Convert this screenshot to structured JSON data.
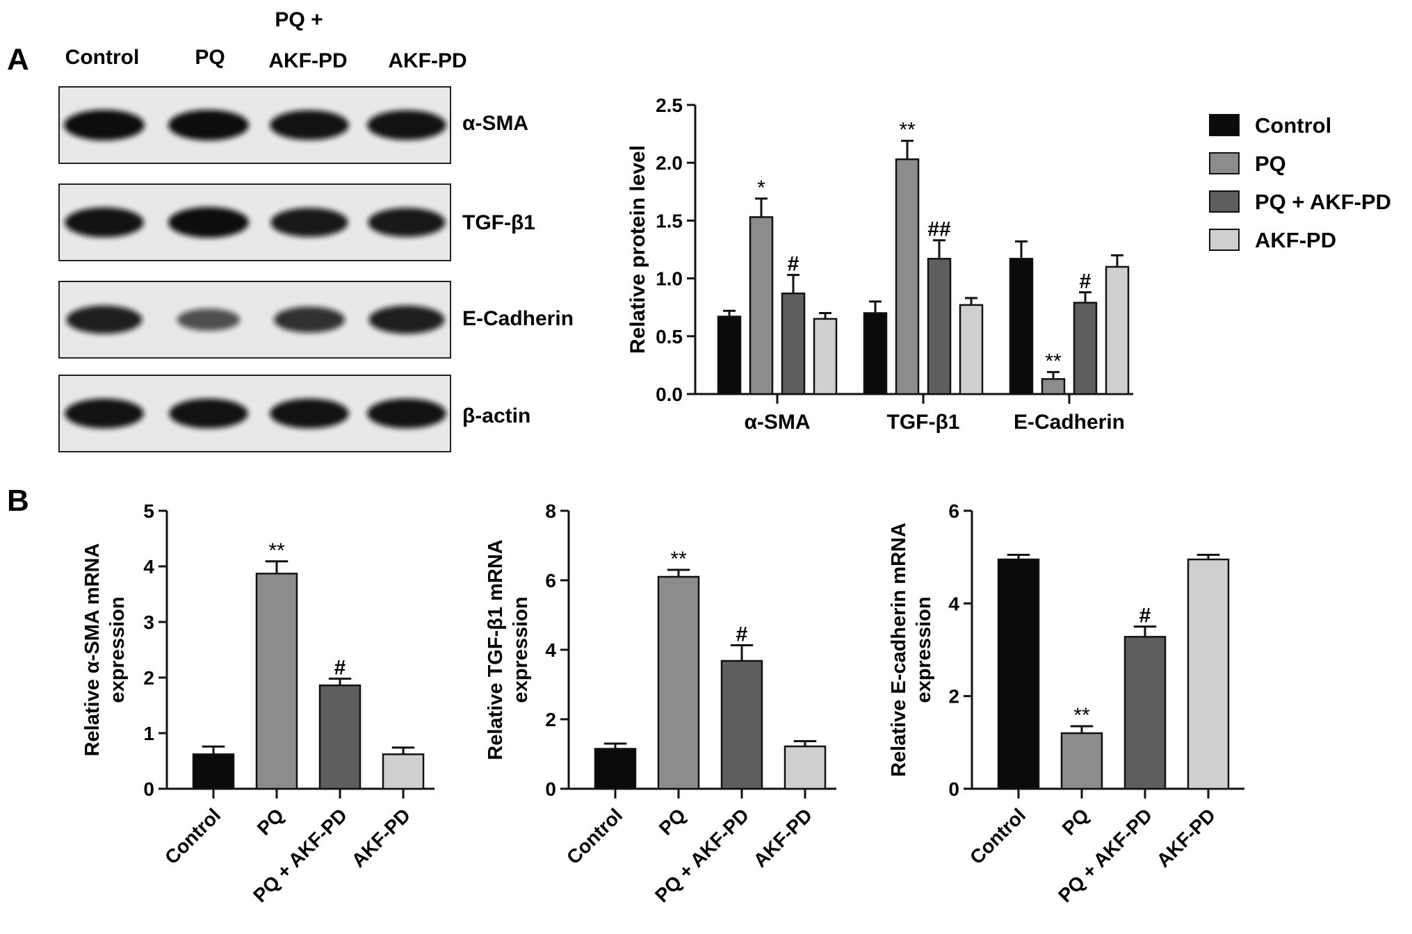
{
  "colors": {
    "control": "#0b0b0b",
    "pq": "#8c8c8c",
    "pq_akf": "#5e5e5e",
    "akf": "#cfcfcf",
    "axis": "#111111",
    "blot_bg": "#e8e8e8",
    "band": "#0e0e0e"
  },
  "panel_a": {
    "letter": "A",
    "lanes": [
      "Control",
      "PQ",
      "PQ +",
      "AKF-PD",
      "AKF-PD"
    ],
    "blot_labels": [
      "α-SMA",
      "TGF-β1",
      "E-Cadherin",
      "β-actin"
    ],
    "band_intensity": [
      [
        1.0,
        1.0,
        0.95,
        0.95
      ],
      [
        0.95,
        1.0,
        0.9,
        0.9
      ],
      [
        0.85,
        0.45,
        0.7,
        0.85
      ],
      [
        0.95,
        0.95,
        0.95,
        0.95
      ]
    ]
  },
  "panel_b": {
    "letter": "B"
  },
  "legend": {
    "entries": [
      {
        "name": "Control",
        "color_key": "control"
      },
      {
        "name": "PQ",
        "color_key": "pq"
      },
      {
        "name": "PQ + AKF-PD",
        "color_key": "pq_akf"
      },
      {
        "name": "AKF-PD",
        "color_key": "akf"
      }
    ]
  },
  "chart_data": [
    {
      "type": "bar",
      "id": "protein",
      "ylabel": "Relative protein level",
      "ylim": [
        0,
        2.5
      ],
      "yticks": [
        "0.0",
        "0.5",
        "1.0",
        "1.5",
        "2.0",
        "2.5"
      ],
      "categories": [
        "α-SMA",
        "TGF-β1",
        "E-Cadherin"
      ],
      "series": [
        {
          "name": "Control",
          "color_key": "control",
          "values": [
            0.67,
            0.7,
            1.17
          ],
          "errors": [
            0.05,
            0.1,
            0.15
          ],
          "annotations": [
            "",
            "",
            ""
          ]
        },
        {
          "name": "PQ",
          "color_key": "pq",
          "values": [
            1.53,
            2.03,
            0.13
          ],
          "errors": [
            0.16,
            0.16,
            0.06
          ],
          "annotations": [
            "*",
            "**",
            "**"
          ]
        },
        {
          "name": "PQ + AKF-PD",
          "color_key": "pq_akf",
          "values": [
            0.87,
            1.17,
            0.79
          ],
          "errors": [
            0.16,
            0.16,
            0.09
          ],
          "annotations": [
            "#",
            "##",
            "#"
          ]
        },
        {
          "name": "AKF-PD",
          "color_key": "akf",
          "values": [
            0.65,
            0.77,
            1.1
          ],
          "errors": [
            0.05,
            0.06,
            0.1
          ],
          "annotations": [
            "",
            "",
            ""
          ]
        }
      ]
    },
    {
      "type": "bar",
      "id": "asma_mrna",
      "ylabel": [
        "Relative α-SMA mRNA",
        "expression"
      ],
      "ylim": [
        0,
        5
      ],
      "yticks": [
        "0",
        "1",
        "2",
        "3",
        "4",
        "5"
      ],
      "categories": [
        "Control",
        "PQ",
        "PQ + AKF-PD",
        "AKF-PD"
      ],
      "color_keys": [
        "control",
        "pq",
        "pq_akf",
        "akf"
      ],
      "values": [
        0.62,
        3.87,
        1.86,
        0.62
      ],
      "errors": [
        0.14,
        0.22,
        0.12,
        0.12
      ],
      "annotations": [
        "",
        "**",
        "#",
        ""
      ]
    },
    {
      "type": "bar",
      "id": "tgf_mrna",
      "ylabel": [
        "Relative TGF-β1 mRNA",
        "expression"
      ],
      "ylim": [
        0,
        8
      ],
      "yticks": [
        "0",
        "2",
        "4",
        "6",
        "8"
      ],
      "categories": [
        "Control",
        "PQ",
        "PQ + AKF-PD",
        "AKF-PD"
      ],
      "color_keys": [
        "control",
        "pq",
        "pq_akf",
        "akf"
      ],
      "values": [
        1.15,
        6.1,
        3.68,
        1.22
      ],
      "errors": [
        0.15,
        0.2,
        0.45,
        0.15
      ],
      "annotations": [
        "",
        "**",
        "#",
        ""
      ]
    },
    {
      "type": "bar",
      "id": "ecad_mrna",
      "ylabel": [
        "Relative E-cadherin mRNA",
        "expression"
      ],
      "ylim": [
        0,
        6
      ],
      "yticks": [
        "0",
        "2",
        "4",
        "6"
      ],
      "categories": [
        "Control",
        "PQ",
        "PQ + AKF-PD",
        "AKF-PD"
      ],
      "color_keys": [
        "control",
        "pq",
        "pq_akf",
        "akf"
      ],
      "values": [
        4.95,
        1.2,
        3.28,
        4.95
      ],
      "errors": [
        0.1,
        0.15,
        0.22,
        0.1
      ],
      "annotations": [
        "",
        "**",
        "#",
        ""
      ]
    }
  ]
}
